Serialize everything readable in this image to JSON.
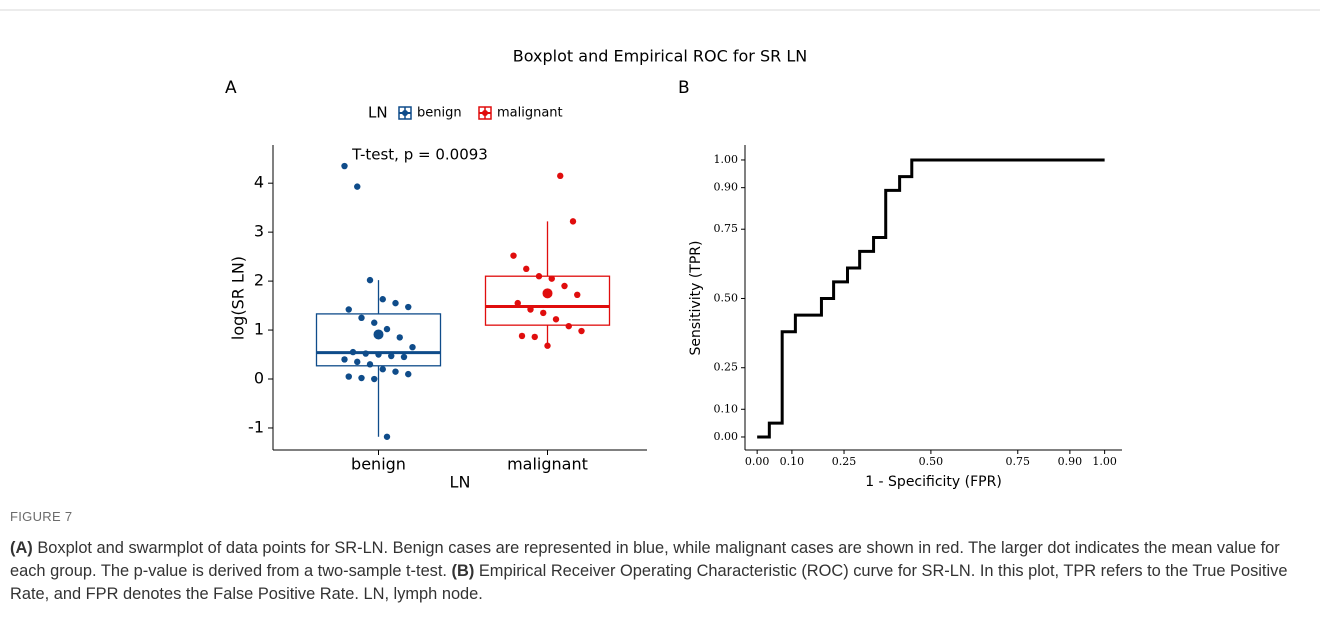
{
  "title": "Boxplot and Empirical ROC for SR LN",
  "chart_data": [
    {
      "type": "box",
      "panel": "A",
      "categories": [
        "benign",
        "malignant"
      ],
      "colors": [
        "#0f4c8a",
        "#e00d0d"
      ],
      "boxes": [
        {
          "whislo": -1.18,
          "q1": 0.27,
          "med": 0.54,
          "q3": 1.33,
          "whishi": 2.02,
          "mean": 0.91
        },
        {
          "whislo": 0.68,
          "q1": 1.1,
          "med": 1.48,
          "q3": 2.1,
          "whishi": 3.22,
          "mean": 1.75
        }
      ],
      "points": [
        [
          4.35,
          3.93,
          2.02,
          1.63,
          1.55,
          1.47,
          1.42,
          1.25,
          1.15,
          1.02,
          0.85,
          0.65,
          0.55,
          0.52,
          0.5,
          0.47,
          0.45,
          0.4,
          0.35,
          0.3,
          0.2,
          0.15,
          0.1,
          0.05,
          0.02,
          0.0,
          -1.18
        ],
        [
          4.15,
          3.22,
          2.52,
          2.25,
          2.1,
          2.05,
          1.9,
          1.72,
          1.55,
          1.42,
          1.35,
          1.22,
          1.08,
          0.98,
          0.88,
          0.86,
          0.68
        ]
      ],
      "legend_title": "LN",
      "annotation": "T-test, p = 0.0093",
      "xlabel": "LN",
      "ylabel": "log(SR LN)",
      "ylim": [
        -1.45,
        4.78
      ],
      "yticks": [
        -1,
        0,
        1,
        2,
        3,
        4
      ]
    },
    {
      "type": "line",
      "panel": "B",
      "color": "#000000",
      "x": [
        0,
        0.035,
        0.035,
        0.072,
        0.072,
        0.11,
        0.11,
        0.185,
        0.185,
        0.22,
        0.22,
        0.26,
        0.26,
        0.295,
        0.295,
        0.335,
        0.335,
        0.37,
        0.37,
        0.41,
        0.41,
        0.445,
        0.445,
        1
      ],
      "y": [
        0,
        0,
        0.05,
        0.05,
        0.38,
        0.38,
        0.44,
        0.44,
        0.5,
        0.5,
        0.56,
        0.56,
        0.61,
        0.61,
        0.67,
        0.67,
        0.72,
        0.72,
        0.89,
        0.89,
        0.94,
        0.94,
        1,
        1
      ],
      "xlabel": "1 - Specificity (FPR)",
      "ylabel": "Sensitivity (TPR)",
      "xlim": [
        -0.035,
        1.05
      ],
      "ylim": [
        -0.047,
        1.054
      ],
      "xticks": [
        {
          "value": 0,
          "label": "0.00"
        },
        {
          "value": 0.1,
          "label": "0.10"
        },
        {
          "value": 0.25,
          "label": "0.25"
        },
        {
          "value": 0.5,
          "label": "0.50"
        },
        {
          "value": 0.75,
          "label": "0.75"
        },
        {
          "value": 0.9,
          "label": "0.90"
        },
        {
          "value": 1,
          "label": "1.00"
        }
      ],
      "yticks": [
        {
          "value": 0,
          "label": "0.00"
        },
        {
          "value": 0.1,
          "label": "0.10"
        },
        {
          "value": 0.25,
          "label": "0.25"
        },
        {
          "value": 0.5,
          "label": "0.50"
        },
        {
          "value": 0.75,
          "label": "0.75"
        },
        {
          "value": 0.9,
          "label": "0.90"
        },
        {
          "value": 1,
          "label": "1.00"
        }
      ]
    }
  ],
  "caption": {
    "label": "FIGURE 7",
    "parts": [
      "(A)",
      " Boxplot and swarmplot of data points for SR-LN. Benign cases are represented in blue, while malignant cases are shown in red. The larger dot indicates the mean value for each group. The p-value is derived from a two-sample t-test. ",
      "(B)",
      " Empirical Receiver Operating Characteristic (ROC) curve for SR-LN. In this plot, TPR refers to the True Positive Rate, and FPR denotes the False Positive Rate. LN, lymph node."
    ]
  }
}
